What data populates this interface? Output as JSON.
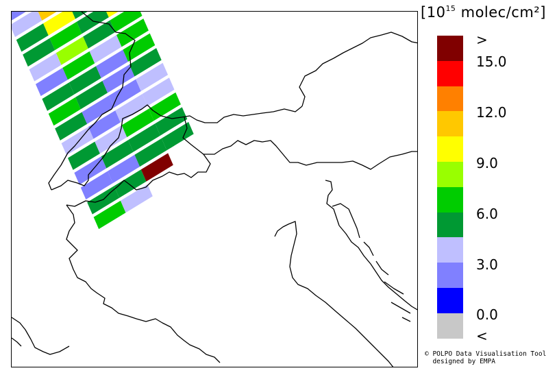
{
  "unit": {
    "base": "10",
    "exponent": "15",
    "rest": " molec/cm²"
  },
  "colorbar": {
    "colors": [
      "#800000",
      "#ff0000",
      "#ff8000",
      "#ffc800",
      "#ffff00",
      "#99ff00",
      "#00cc00",
      "#009933",
      "#bfbfff",
      "#8080ff",
      "#0000ff",
      "#c8c8c8"
    ],
    "ticks": [
      ">",
      "15.0",
      "12.0",
      "9.0",
      "6.0",
      "3.0",
      "0.0",
      "<"
    ]
  },
  "credit": {
    "line1": "© POLPO Data Visualisation Tool",
    "line2": "  designed by EMPA"
  },
  "map": {
    "region": "Alps / Northern Italy",
    "colors": {
      "brown": "#800000",
      "red": "#ff0000",
      "orange": "#ff8000",
      "amber": "#ffc800",
      "yellow": "#ffff00",
      "lime": "#99ff00",
      "green": "#00cc00",
      "dkgreen": "#009933",
      "ltblue": "#bfbfff",
      "blue": "#8080ff"
    },
    "swath_rows": [
      [
        "blue",
        "brown",
        "orange"
      ],
      [
        "ltblue",
        "amber",
        "dkgreen",
        "red"
      ],
      [
        "dkgreen",
        "yellow",
        "dkgreen",
        "lime"
      ],
      [
        "dkgreen",
        "green",
        "dkgreen",
        "yellow"
      ],
      [
        "ltblue",
        "lime",
        "dkgreen",
        "green"
      ],
      [
        "blue",
        "green",
        "ltblue",
        "green"
      ],
      [
        "dkgreen",
        "dkgreen",
        "blue",
        "green"
      ],
      [
        "green",
        "dkgreen",
        "blue",
        "dkgreen"
      ],
      [
        "dkgreen",
        "blue",
        "blue",
        "ltblue"
      ],
      [
        "ltblue",
        "blue",
        "ltblue",
        "ltblue"
      ],
      [
        "dkgreen",
        "ltblue",
        "green",
        "green"
      ],
      [
        "blue",
        "dkgreen",
        "dkgreen",
        "dkgreen"
      ],
      [
        "blue",
        "blue",
        "dkgreen",
        "dkgreen"
      ],
      [
        "dkgreen",
        "dkgreen",
        "brown"
      ],
      [
        "green",
        "ltblue"
      ]
    ]
  }
}
